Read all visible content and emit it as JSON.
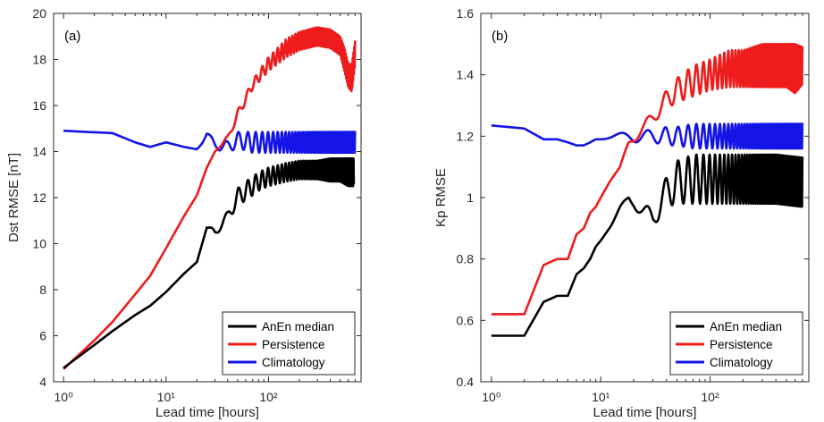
{
  "colors": {
    "anen": "#000000",
    "persistence": "#ee1c1c",
    "climatology": "#1414e6",
    "axis": "#262626"
  },
  "chart_data": [
    {
      "type": "line",
      "panel_label": "(a)",
      "xlabel": "Lead time [hours]",
      "ylabel": "Dst RMSE [nT]",
      "xscale": "log",
      "xlim": [
        0.8,
        800
      ],
      "ylim": [
        4,
        20
      ],
      "xtick_labels": [
        "10⁰",
        "10¹",
        "10²"
      ],
      "xtick_values": [
        1,
        10,
        100
      ],
      "ytick_values": [
        4,
        6,
        8,
        10,
        12,
        14,
        16,
        18,
        20
      ],
      "ytick_labels": [
        "4",
        "6",
        "8",
        "10",
        "12",
        "14",
        "16",
        "18",
        "20"
      ],
      "legend_position": "bottom-right",
      "legend": [
        "AnEn median",
        "Persistence",
        "Climatology"
      ],
      "series": [
        {
          "name": "AnEn median",
          "x": [
            1,
            2,
            3,
            5,
            7,
            10,
            15,
            20,
            25,
            30,
            40,
            50,
            60,
            70,
            80,
            100,
            150,
            200,
            300,
            400,
            500,
            600,
            680
          ],
          "y": [
            4.6,
            5.6,
            6.2,
            6.9,
            7.3,
            7.9,
            8.7,
            9.2,
            10.7,
            10.5,
            11.2,
            12.0,
            12.3,
            12.5,
            12.7,
            12.9,
            13.1,
            13.2,
            13.2,
            13.2,
            13.2,
            13.1,
            13.1
          ],
          "oscillation_amplitude": [
            0,
            0,
            0,
            0,
            0,
            0,
            0,
            0,
            0,
            0.2,
            0.2,
            0.4,
            0.4,
            0.4,
            0.4,
            0.4,
            0.4,
            0.4,
            0.4,
            0.5,
            0.5,
            0.6,
            0.6
          ]
        },
        {
          "name": "Persistence",
          "x": [
            1,
            2,
            3,
            5,
            7,
            10,
            15,
            20,
            25,
            30,
            40,
            50,
            70,
            100,
            150,
            200,
            300,
            400,
            500,
            550,
            600,
            650,
            700
          ],
          "y": [
            4.55,
            5.8,
            6.6,
            7.8,
            8.6,
            9.8,
            11.2,
            12.1,
            13.3,
            14.0,
            14.6,
            15.6,
            16.9,
            17.8,
            18.5,
            18.8,
            19.0,
            18.9,
            18.6,
            18.0,
            17.3,
            17.2,
            18.3
          ],
          "oscillation_amplitude": [
            0,
            0,
            0,
            0,
            0,
            0,
            0,
            0,
            0,
            0,
            0.1,
            0.2,
            0.2,
            0.3,
            0.4,
            0.4,
            0.4,
            0.4,
            0.4,
            0.5,
            0.5,
            0.6,
            0.5
          ]
        },
        {
          "name": "Climatology",
          "x": [
            1,
            3,
            5,
            7,
            10,
            15,
            20,
            25,
            30,
            40,
            50,
            70,
            100,
            200,
            400,
            700
          ],
          "y": [
            14.9,
            14.8,
            14.4,
            14.2,
            14.4,
            14.2,
            14.1,
            14.7,
            14.3,
            14.2,
            14.5,
            14.4,
            14.4,
            14.4,
            14.4,
            14.4
          ],
          "oscillation_amplitude": [
            0,
            0,
            0,
            0,
            0,
            0,
            0,
            0.15,
            0.2,
            0.25,
            0.35,
            0.45,
            0.45,
            0.45,
            0.45,
            0.45
          ]
        }
      ]
    },
    {
      "type": "line",
      "panel_label": "(b)",
      "xlabel": "Lead time [hours]",
      "ylabel": "Kp RMSE",
      "xscale": "log",
      "xlim": [
        0.8,
        800
      ],
      "ylim": [
        0.4,
        1.6
      ],
      "xtick_labels": [
        "10⁰",
        "10¹",
        "10²"
      ],
      "xtick_values": [
        1,
        10,
        100
      ],
      "ytick_values": [
        0.4,
        0.6,
        0.8,
        1.0,
        1.2,
        1.4,
        1.6
      ],
      "ytick_labels": [
        "0.4",
        "0.6",
        "0.8",
        "1",
        "1.2",
        "1.4",
        "1.6"
      ],
      "legend_position": "bottom-right",
      "legend": [
        "AnEn median",
        "Persistence",
        "Climatology"
      ],
      "series": [
        {
          "name": "AnEn median",
          "x": [
            1,
            2,
            3,
            4,
            5,
            6,
            7,
            8,
            9,
            10,
            12,
            15,
            18,
            20,
            25,
            30,
            40,
            50,
            70,
            100,
            200,
            400,
            700
          ],
          "y": [
            0.55,
            0.55,
            0.66,
            0.68,
            0.68,
            0.75,
            0.77,
            0.8,
            0.84,
            0.86,
            0.9,
            0.95,
            1.0,
            0.99,
            0.95,
            0.93,
            1.02,
            1.05,
            1.06,
            1.06,
            1.06,
            1.06,
            1.05
          ],
          "oscillation_amplitude": [
            0,
            0,
            0,
            0,
            0,
            0,
            0,
            0,
            0,
            0,
            0,
            0.02,
            0.02,
            0.02,
            0.03,
            0.03,
            0.05,
            0.07,
            0.08,
            0.08,
            0.08,
            0.08,
            0.08
          ]
        },
        {
          "name": "Persistence",
          "x": [
            1,
            2,
            3,
            4,
            5,
            6,
            7,
            8,
            9,
            10,
            12,
            15,
            18,
            20,
            25,
            30,
            40,
            50,
            70,
            100,
            150,
            200,
            300,
            400,
            500,
            600,
            700
          ],
          "y": [
            0.62,
            0.62,
            0.78,
            0.8,
            0.8,
            0.88,
            0.9,
            0.95,
            0.97,
            1.0,
            1.05,
            1.1,
            1.18,
            1.2,
            1.23,
            1.26,
            1.32,
            1.35,
            1.38,
            1.4,
            1.42,
            1.42,
            1.43,
            1.43,
            1.43,
            1.42,
            1.43
          ],
          "oscillation_amplitude": [
            0,
            0,
            0,
            0,
            0,
            0,
            0,
            0,
            0,
            0,
            0,
            0,
            0.01,
            0.02,
            0.02,
            0.02,
            0.03,
            0.04,
            0.05,
            0.05,
            0.06,
            0.06,
            0.07,
            0.07,
            0.07,
            0.08,
            0.06
          ]
        },
        {
          "name": "Climatology",
          "x": [
            1,
            2,
            3,
            4,
            5,
            6,
            7,
            8,
            9,
            10,
            15,
            20,
            25,
            30,
            40,
            50,
            70,
            100,
            200,
            400,
            700
          ],
          "y": [
            1.235,
            1.225,
            1.19,
            1.19,
            1.18,
            1.17,
            1.17,
            1.18,
            1.19,
            1.19,
            1.2,
            1.2,
            1.2,
            1.2,
            1.2,
            1.2,
            1.2,
            1.2,
            1.2,
            1.2,
            1.2
          ],
          "oscillation_amplitude": [
            0,
            0,
            0,
            0,
            0,
            0,
            0,
            0,
            0,
            0,
            0.01,
            0.02,
            0.02,
            0.02,
            0.03,
            0.03,
            0.04,
            0.04,
            0.04,
            0.04,
            0.04
          ]
        }
      ]
    }
  ]
}
